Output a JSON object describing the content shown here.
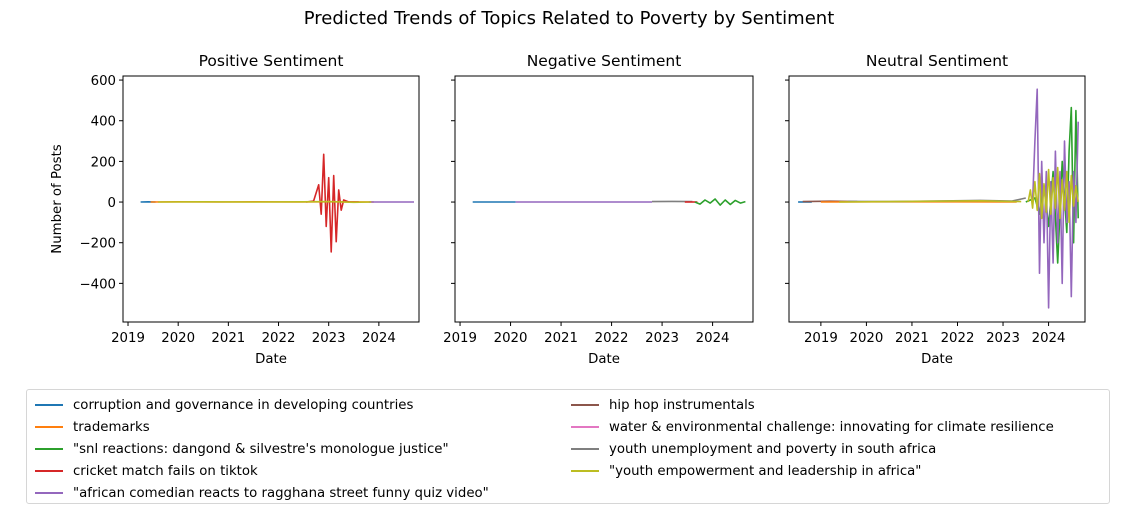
{
  "chart_data": {
    "type": "line",
    "title": "Predicted Trends of Topics Related to Poverty by Sentiment",
    "ylabel": "Number of Posts",
    "ylim": [
      -590,
      620
    ],
    "yticks": [
      600,
      400,
      200,
      0,
      -200,
      -400
    ],
    "ytick_labels": [
      "600",
      "400",
      "200",
      "0",
      "−200",
      "−400"
    ],
    "xticks": [
      2019,
      2020,
      2021,
      2022,
      2023,
      2024
    ],
    "legend_position": "lower-center",
    "legend": [
      {
        "label": "corruption and governance in developing countries",
        "color": "#1f77b4"
      },
      {
        "label": "trademarks",
        "color": "#ff7f0e"
      },
      {
        "label": "\"snl reactions: dangond & silvestre's monologue justice\"",
        "color": "#2ca02c"
      },
      {
        "label": "cricket match fails on tiktok",
        "color": "#d62728"
      },
      {
        "label": "\"african comedian reacts to ragghana street funny quiz video\"",
        "color": "#9467bd"
      },
      {
        "label": "hip hop instrumentals",
        "color": "#8c564b"
      },
      {
        "label": "water & environmental challenge: innovating for climate resilience",
        "color": "#e377c2"
      },
      {
        "label": "youth unemployment and poverty in south africa",
        "color": "#7f7f7f"
      },
      {
        "label": "\"youth empowerment and leadership in africa\"",
        "color": "#bcbd22"
      }
    ],
    "panels": [
      {
        "title": "Positive Sentiment",
        "xlabel": "Date",
        "xlim": [
          2018.9,
          2024.8
        ],
        "series": [
          {
            "topic": 0,
            "x": [
              2019.25,
              2019.4,
              2019.55
            ],
            "y": [
              0,
              1,
              0
            ]
          },
          {
            "topic": 1,
            "x": [
              2019.45,
              2020.0,
              2020.8,
              2021.6,
              2022.4,
              2023.2,
              2023.9
            ],
            "y": [
              0,
              1,
              0,
              1,
              0,
              1,
              0
            ]
          },
          {
            "topic": 3,
            "x": [
              2022.55,
              2022.7,
              2022.8,
              2022.85,
              2022.9,
              2022.95,
              2023.0,
              2023.05,
              2023.1,
              2023.15,
              2023.2,
              2023.25,
              2023.3,
              2023.4,
              2023.5,
              2023.6
            ],
            "y": [
              0,
              5,
              85,
              -60,
              235,
              -120,
              120,
              -245,
              130,
              -195,
              60,
              -40,
              10,
              0,
              0,
              0
            ]
          },
          {
            "topic": 4,
            "x": [
              2023.8,
              2024.1,
              2024.45,
              2024.7
            ],
            "y": [
              0,
              0,
              0,
              0
            ]
          },
          {
            "topic": 8,
            "x": [
              2019.6,
              2020.5,
              2021.5,
              2022.5,
              2023.0,
              2023.5,
              2023.85
            ],
            "y": [
              0,
              1,
              0,
              1,
              2,
              -1,
              0
            ]
          }
        ]
      },
      {
        "title": "Negative Sentiment",
        "xlabel": "Date",
        "xlim": [
          2018.9,
          2024.8
        ],
        "series": [
          {
            "topic": 0,
            "x": [
              2019.25,
              2020.1
            ],
            "y": [
              0,
              0
            ]
          },
          {
            "topic": 4,
            "x": [
              2020.1,
              2021.0,
              2022.0,
              2022.8
            ],
            "y": [
              0,
              0,
              0,
              0
            ]
          },
          {
            "topic": 7,
            "x": [
              2022.8,
              2023.2,
              2023.6
            ],
            "y": [
              2,
              3,
              2
            ]
          },
          {
            "topic": 3,
            "x": [
              2023.45,
              2023.7
            ],
            "y": [
              0,
              0
            ]
          },
          {
            "topic": 2,
            "x": [
              2023.65,
              2023.75,
              2023.85,
              2023.95,
              2024.05,
              2024.15,
              2024.25,
              2024.35,
              2024.45,
              2024.55,
              2024.65
            ],
            "y": [
              0,
              -10,
              10,
              -5,
              15,
              -15,
              10,
              -12,
              8,
              -5,
              2
            ]
          }
        ]
      },
      {
        "title": "Neutral Sentiment",
        "xlabel": "Date",
        "xlim": [
          2018.3,
          2024.8
        ],
        "series": [
          {
            "topic": 0,
            "x": [
              2018.5,
              2018.8
            ],
            "y": [
              0,
              0
            ]
          },
          {
            "topic": 5,
            "x": [
              2018.6,
              2019.2,
              2019.8
            ],
            "y": [
              2,
              4,
              2
            ]
          },
          {
            "topic": 1,
            "x": [
              2019.0,
              2020.5,
              2022.0,
              2023.3
            ],
            "y": [
              0,
              1,
              1,
              0
            ]
          },
          {
            "topic": 7,
            "x": [
              2019.6,
              2020.5,
              2021.5,
              2022.5,
              2023.2,
              2023.5
            ],
            "y": [
              3,
              2,
              5,
              8,
              5,
              20
            ]
          },
          {
            "topic": 8,
            "x": [
              2019.4,
              2020.5,
              2021.5,
              2022.5,
              2023.4
            ],
            "y": [
              0,
              2,
              4,
              6,
              2
            ]
          },
          {
            "topic": 2,
            "x": [
              2023.5,
              2023.7,
              2023.8,
              2023.9,
              2024.0,
              2024.1,
              2024.2,
              2024.3,
              2024.4,
              2024.45,
              2024.5,
              2024.55,
              2024.6,
              2024.65
            ],
            "y": [
              0,
              20,
              -60,
              80,
              -120,
              150,
              -300,
              200,
              -150,
              250,
              465,
              -200,
              450,
              -80
            ]
          },
          {
            "topic": 4,
            "x": [
              2023.65,
              2023.7,
              2023.75,
              2023.8,
              2023.85,
              2023.9,
              2023.95,
              2024.0,
              2024.05,
              2024.1,
              2024.15,
              2024.2,
              2024.25,
              2024.3,
              2024.35,
              2024.4,
              2024.45,
              2024.5,
              2024.55,
              2024.6,
              2024.65
            ],
            "y": [
              0,
              300,
              555,
              -350,
              200,
              -200,
              150,
              -520,
              100,
              -300,
              250,
              -200,
              150,
              -400,
              300,
              -100,
              100,
              -465,
              150,
              -100,
              395
            ]
          },
          {
            "topic": 8,
            "x": [
              2023.55,
              2023.6,
              2023.65,
              2023.7,
              2023.75,
              2023.8,
              2023.85,
              2023.9,
              2023.95,
              2024.0,
              2024.05,
              2024.1,
              2024.15,
              2024.2,
              2024.25,
              2024.3,
              2024.35,
              2024.4,
              2024.45,
              2024.5,
              2024.55,
              2024.6,
              2024.65
            ],
            "y": [
              0,
              60,
              -30,
              100,
              -40,
              140,
              -80,
              90,
              -50,
              160,
              -60,
              120,
              -30,
              170,
              -80,
              110,
              -40,
              150,
              -100,
              130,
              -20,
              80,
              0
            ]
          }
        ]
      }
    ]
  }
}
